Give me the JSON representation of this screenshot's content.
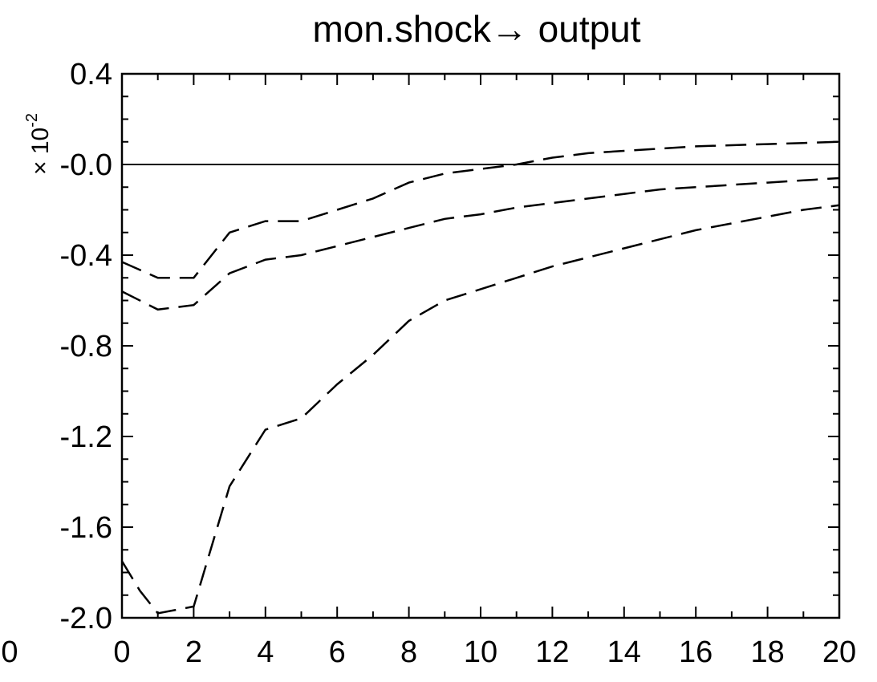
{
  "chart_data": {
    "type": "line",
    "title": "mon.shock→ output",
    "scale_label": {
      "prefix": "× 10",
      "exponent": "-2"
    },
    "xlim": [
      0,
      20
    ],
    "ylim": [
      -2.0,
      0.4
    ],
    "x_ticks": [
      0,
      2,
      4,
      6,
      8,
      10,
      12,
      14,
      16,
      18,
      20
    ],
    "x_tick_labels": [
      "0",
      "2",
      "4",
      "6",
      "8",
      "10",
      "12",
      "14",
      "16",
      "18",
      "20"
    ],
    "y_ticks": [
      0.4,
      0.0,
      -0.4,
      -0.8,
      -1.2,
      -1.6,
      -2.0
    ],
    "y_tick_labels": [
      "0.4",
      "-0.0",
      "-0.4",
      "-0.8",
      "-1.2",
      "-1.6",
      "-2.0"
    ],
    "stray_label": "0",
    "zero_line": true,
    "grid": false,
    "line_color": "#000000",
    "series": [
      {
        "style": "dashed",
        "x": [
          0,
          1,
          2,
          3,
          4,
          5,
          6,
          7,
          8,
          9,
          10,
          11,
          12,
          13,
          14,
          15,
          16,
          17,
          18,
          19,
          20
        ],
        "y": [
          -0.43,
          -0.5,
          -0.5,
          -0.3,
          -0.25,
          -0.25,
          -0.2,
          -0.15,
          -0.08,
          -0.04,
          -0.02,
          0.0,
          0.03,
          0.05,
          0.06,
          0.07,
          0.08,
          0.085,
          0.09,
          0.095,
          0.1
        ]
      },
      {
        "style": "dashed",
        "x": [
          0,
          1,
          2,
          3,
          4,
          5,
          6,
          7,
          8,
          9,
          10,
          11,
          12,
          13,
          14,
          15,
          16,
          17,
          18,
          19,
          20
        ],
        "y": [
          -0.56,
          -0.64,
          -0.62,
          -0.48,
          -0.42,
          -0.4,
          -0.36,
          -0.32,
          -0.28,
          -0.24,
          -0.22,
          -0.19,
          -0.17,
          -0.15,
          -0.13,
          -0.11,
          -0.1,
          -0.09,
          -0.08,
          -0.07,
          -0.06
        ]
      },
      {
        "style": "dashed",
        "x": [
          0,
          0.5,
          1,
          2,
          3,
          4,
          5,
          6,
          7,
          8,
          9,
          10,
          11,
          12,
          13,
          14,
          15,
          16,
          17,
          18,
          19,
          20
        ],
        "y": [
          -1.75,
          -1.88,
          -1.98,
          -1.95,
          -1.42,
          -1.17,
          -1.12,
          -0.97,
          -0.84,
          -0.69,
          -0.6,
          -0.55,
          -0.5,
          -0.45,
          -0.41,
          -0.37,
          -0.33,
          -0.29,
          -0.26,
          -0.23,
          -0.2,
          -0.18
        ]
      }
    ]
  }
}
